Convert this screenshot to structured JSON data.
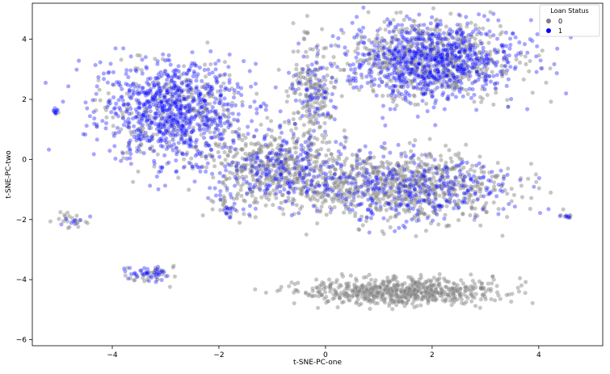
{
  "chart_data": {
    "type": "scatter",
    "xlabel": "t-SNE-PC-one",
    "ylabel": "t-SNE-PC-two",
    "xlim": [
      -5.5,
      5.2
    ],
    "ylim": [
      -6.2,
      5.2
    ],
    "x_ticks": [
      -4,
      -2,
      0,
      2,
      4
    ],
    "y_ticks": [
      -6,
      -4,
      -2,
      0,
      2,
      4
    ],
    "x_tick_labels": [
      "−4",
      "−2",
      "0",
      "2",
      "4"
    ],
    "y_tick_labels": [
      "−6",
      "−4",
      "−2",
      "0",
      "2",
      "4"
    ],
    "grid": false,
    "legend": {
      "title": "Loan Status",
      "placement": "top-right",
      "entries": [
        {
          "label": "0",
          "color": "#808080"
        },
        {
          "label": "1",
          "color": "#0000ff"
        }
      ]
    },
    "series": [
      {
        "name": "0",
        "color": "#808080",
        "alpha": 0.45
      },
      {
        "name": "1",
        "color": "#0000ff",
        "alpha": 0.35
      }
    ],
    "clusters": [
      {
        "x": -2.9,
        "y": 1.6,
        "sx": 0.9,
        "sy": 1.1,
        "count": 1100,
        "blue_share": 0.72
      },
      {
        "x": 2.0,
        "y": 3.3,
        "sx": 1.05,
        "sy": 0.85,
        "count": 1400,
        "blue_share": 0.55
      },
      {
        "x": 1.5,
        "y": -0.9,
        "sx": 1.3,
        "sy": 0.75,
        "count": 1100,
        "blue_share": 0.32
      },
      {
        "x": -0.9,
        "y": -0.3,
        "sx": 0.9,
        "sy": 0.8,
        "count": 700,
        "blue_share": 0.3
      },
      {
        "x": -0.25,
        "y": 2.3,
        "sx": 0.3,
        "sy": 1.0,
        "count": 250,
        "blue_share": 0.25
      },
      {
        "x": 1.4,
        "y": -4.4,
        "sx": 1.2,
        "sy": 0.28,
        "count": 700,
        "blue_share": 0.0
      },
      {
        "x": -3.3,
        "y": -3.8,
        "sx": 0.3,
        "sy": 0.16,
        "count": 70,
        "blue_share": 0.45
      },
      {
        "x": -4.75,
        "y": -2.0,
        "sx": 0.22,
        "sy": 0.18,
        "count": 30,
        "blue_share": 0.4
      },
      {
        "x": -5.05,
        "y": 1.6,
        "sx": 0.04,
        "sy": 0.06,
        "count": 12,
        "blue_share": 0.6
      },
      {
        "x": 4.5,
        "y": -1.9,
        "sx": 0.12,
        "sy": 0.05,
        "count": 12,
        "blue_share": 0.4
      },
      {
        "x": -1.85,
        "y": -1.6,
        "sx": 0.2,
        "sy": 0.3,
        "count": 40,
        "blue_share": 0.3
      }
    ]
  }
}
